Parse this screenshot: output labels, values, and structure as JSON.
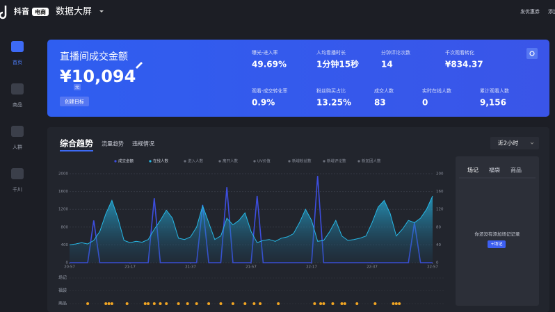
{
  "header": {
    "brand": "抖音",
    "badge": "电商",
    "title": "数据大屏",
    "actions": [
      "发优惠券",
      "添加"
    ]
  },
  "sidebar": [
    "首页",
    "商品",
    "人群",
    "千川"
  ],
  "summary": {
    "title": "直播间成交金额",
    "value": "¥10,094",
    "unit": "元",
    "button": "创建目标",
    "metrics_top": [
      {
        "label": "曝光-进入率",
        "value": "49.69%"
      },
      {
        "label": "人均看播时长",
        "value": "1分钟15秒"
      },
      {
        "label": "分钟评论次数",
        "value": "14"
      },
      {
        "label": "千次观看转化",
        "value": "¥834.37"
      }
    ],
    "metrics_bottom": [
      {
        "label": "观看-成交转化率",
        "value": "0.9%"
      },
      {
        "label": "粉丝购买占比",
        "value": "13.25%"
      },
      {
        "label": "成交人数",
        "value": "83"
      },
      {
        "label": "实时在线人数",
        "value": "0"
      },
      {
        "label": "累计观看人数",
        "value": "9,156"
      }
    ]
  },
  "trend": {
    "tabs": [
      "综合趋势",
      "流量趋势",
      "违规情况"
    ],
    "range": "近2小时"
  },
  "chart_data": {
    "type": "line",
    "x": [
      0,
      2,
      4,
      6,
      8,
      10,
      12,
      14,
      16,
      18,
      20,
      22,
      24,
      26,
      28,
      30,
      32,
      34,
      36,
      38,
      40,
      42,
      44,
      46,
      48,
      50,
      52,
      54,
      56,
      58,
      60,
      62,
      64,
      66,
      68,
      70,
      72,
      74,
      76,
      78,
      80,
      82,
      84,
      86,
      88,
      90,
      92,
      94,
      96,
      98,
      100,
      102,
      104,
      106,
      108,
      110,
      112,
      114,
      116,
      118,
      120
    ],
    "xlim": [
      0,
      120
    ],
    "xticks": [
      {
        "value": 0,
        "label": "20:57"
      },
      {
        "value": 20,
        "label": "21:17"
      },
      {
        "value": 40,
        "label": "21:37"
      },
      {
        "value": 60,
        "label": "21:57"
      },
      {
        "value": 80,
        "label": "22:17"
      },
      {
        "value": 100,
        "label": "22:37"
      },
      {
        "value": 120,
        "label": "22:57"
      }
    ],
    "ylim": [
      0,
      2000
    ],
    "yticks": [
      0,
      400,
      800,
      1200,
      1600,
      2000
    ],
    "y2lim": [
      0,
      200
    ],
    "y2ticks": [
      0,
      40,
      80,
      120,
      160,
      200
    ],
    "grid": true,
    "series": [
      {
        "name": "成交金额",
        "color": "#3d4ee0",
        "values": [
          0,
          0,
          0,
          0,
          950,
          0,
          0,
          0,
          0,
          0,
          0,
          0,
          0,
          0,
          1450,
          0,
          0,
          0,
          0,
          0,
          0,
          0,
          1300,
          0,
          0,
          0,
          1700,
          0,
          0,
          0,
          0,
          1500,
          0,
          0,
          0,
          0,
          0,
          0,
          0,
          0,
          0,
          1950,
          0,
          0,
          0,
          0,
          0,
          0,
          0,
          0,
          0,
          0,
          0,
          0,
          0,
          0,
          0,
          900,
          0,
          0,
          0
        ]
      },
      {
        "name": "在线人数",
        "color": "#27b8e6",
        "axis": "y2",
        "area": true,
        "values": [
          40,
          42,
          45,
          42,
          50,
          70,
          110,
          140,
          100,
          50,
          45,
          48,
          46,
          52,
          75,
          95,
          118,
          100,
          55,
          52,
          58,
          80,
          128,
          90,
          52,
          60,
          100,
          85,
          95,
          112,
          70,
          45,
          50,
          52,
          48,
          55,
          58,
          65,
          90,
          120,
          95,
          48,
          50,
          70,
          95,
          60,
          50,
          52,
          55,
          60,
          90,
          125,
          140,
          110,
          60,
          75,
          95,
          90,
          100,
          120,
          150
        ]
      }
    ],
    "legend_inactive": [
      "进入人数",
      "离开人数",
      "UV价值",
      "新增粉丝数",
      "新增评论数",
      "新加团人数"
    ],
    "tracks": [
      "场记",
      "福袋",
      "商品"
    ],
    "product_markers": [
      6,
      12,
      13,
      14,
      19,
      25,
      26,
      28,
      30,
      32,
      36,
      39,
      42,
      46,
      50,
      54,
      58,
      61,
      63,
      69,
      81,
      83,
      84,
      87,
      90,
      91,
      95,
      101,
      107,
      108,
      109
    ],
    "marker_color": "#f2a623"
  },
  "side_panel": {
    "tabs": [
      "场记",
      "福袋",
      "商品"
    ],
    "empty": "你还没有添加场记记录",
    "button": "+场记"
  }
}
